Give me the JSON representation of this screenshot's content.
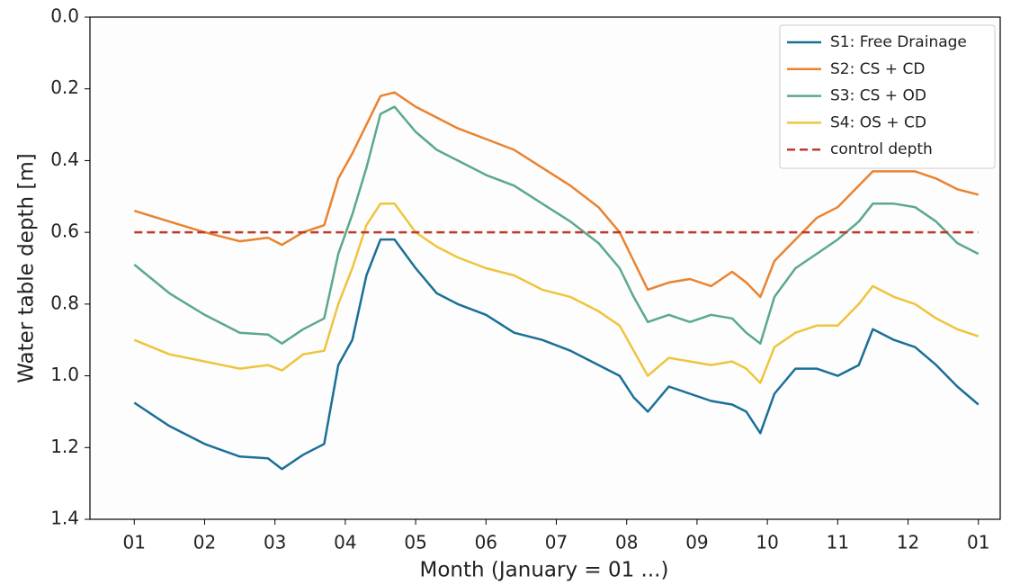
{
  "chart_data": {
    "type": "line",
    "xlabel": "Month (January = 01 ...)",
    "ylabel": "Water table depth [m]",
    "y_inverted": true,
    "legend": "upper right",
    "xlim": [
      -0.63,
      12.31
    ],
    "ylim": [
      0,
      1.4
    ],
    "xticks": [
      {
        "value": 0,
        "label": "01"
      },
      {
        "value": 1,
        "label": "02"
      },
      {
        "value": 2,
        "label": "03"
      },
      {
        "value": 3,
        "label": "04"
      },
      {
        "value": 4,
        "label": "05"
      },
      {
        "value": 5,
        "label": "06"
      },
      {
        "value": 6,
        "label": "07"
      },
      {
        "value": 7,
        "label": "08"
      },
      {
        "value": 8,
        "label": "09"
      },
      {
        "value": 9,
        "label": "10"
      },
      {
        "value": 10,
        "label": "11"
      },
      {
        "value": 11,
        "label": "12"
      },
      {
        "value": 12,
        "label": "01"
      }
    ],
    "yticks": [
      {
        "value": 0,
        "label": "0.0"
      },
      {
        "value": 0.2,
        "label": "0.2"
      },
      {
        "value": 0.4,
        "label": "0.4"
      },
      {
        "value": 0.6,
        "label": "0.6"
      },
      {
        "value": 0.8,
        "label": "0.8"
      },
      {
        "value": 1,
        "label": "1.0"
      },
      {
        "value": 1.2,
        "label": "1.2"
      },
      {
        "value": 1.4,
        "label": "1.4"
      }
    ],
    "x": [
      0,
      0.5,
      1,
      1.5,
      1.9,
      2.1,
      2.4,
      2.7,
      2.9,
      3.1,
      3.3,
      3.5,
      3.7,
      4.0,
      4.3,
      4.6,
      5.0,
      5.4,
      5.8,
      6.2,
      6.6,
      6.9,
      7.1,
      7.3,
      7.6,
      7.9,
      8.2,
      8.5,
      8.7,
      8.9,
      9.1,
      9.4,
      9.7,
      10.0,
      10.3,
      10.5,
      10.8,
      11.1,
      11.4,
      11.7,
      12.0
    ],
    "series": [
      {
        "name": "S1: Free Drainage",
        "color": "#1b6f97",
        "values": [
          1.075,
          1.14,
          1.19,
          1.225,
          1.23,
          1.26,
          1.22,
          1.19,
          0.97,
          0.9,
          0.72,
          0.62,
          0.62,
          0.7,
          0.77,
          0.8,
          0.83,
          0.88,
          0.9,
          0.93,
          0.97,
          1.0,
          1.06,
          1.1,
          1.03,
          1.05,
          1.07,
          1.08,
          1.1,
          1.16,
          1.05,
          0.98,
          0.98,
          1.0,
          0.97,
          0.87,
          0.9,
          0.92,
          0.97,
          1.03,
          1.08
        ]
      },
      {
        "name": "S2: CS + CD",
        "color": "#e9832f",
        "values": [
          0.54,
          0.57,
          0.6,
          0.625,
          0.615,
          0.635,
          0.6,
          0.58,
          0.45,
          0.38,
          0.3,
          0.22,
          0.21,
          0.25,
          0.28,
          0.31,
          0.34,
          0.37,
          0.42,
          0.47,
          0.53,
          0.6,
          0.68,
          0.76,
          0.74,
          0.73,
          0.75,
          0.71,
          0.74,
          0.78,
          0.68,
          0.62,
          0.56,
          0.53,
          0.47,
          0.43,
          0.43,
          0.43,
          0.45,
          0.48,
          0.495
        ]
      },
      {
        "name": "S3: CS + OD",
        "color": "#5ba98a",
        "values": [
          0.69,
          0.77,
          0.83,
          0.88,
          0.885,
          0.91,
          0.87,
          0.84,
          0.66,
          0.55,
          0.42,
          0.27,
          0.25,
          0.32,
          0.37,
          0.4,
          0.44,
          0.47,
          0.52,
          0.57,
          0.63,
          0.7,
          0.78,
          0.85,
          0.83,
          0.85,
          0.83,
          0.84,
          0.88,
          0.91,
          0.78,
          0.7,
          0.66,
          0.62,
          0.57,
          0.52,
          0.52,
          0.53,
          0.57,
          0.63,
          0.66
        ]
      },
      {
        "name": "S4: OS + CD",
        "color": "#efc43d",
        "values": [
          0.9,
          0.94,
          0.96,
          0.98,
          0.97,
          0.985,
          0.94,
          0.93,
          0.8,
          0.7,
          0.58,
          0.52,
          0.52,
          0.6,
          0.64,
          0.67,
          0.7,
          0.72,
          0.76,
          0.78,
          0.82,
          0.86,
          0.93,
          1.0,
          0.95,
          0.96,
          0.97,
          0.96,
          0.98,
          1.02,
          0.92,
          0.88,
          0.86,
          0.86,
          0.8,
          0.75,
          0.78,
          0.8,
          0.84,
          0.87,
          0.89
        ]
      },
      {
        "name": "control depth",
        "color": "#c0392b",
        "dashed": true,
        "x": [
          0,
          12
        ],
        "values": [
          0.6,
          0.6
        ]
      }
    ]
  }
}
